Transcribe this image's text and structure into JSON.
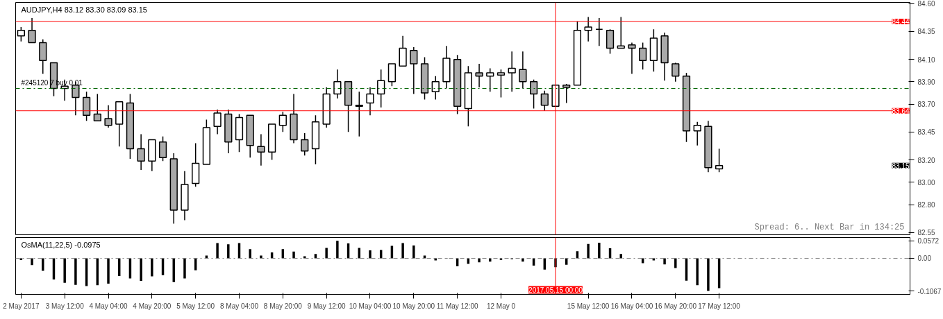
{
  "chart_data": [
    {
      "type": "candlestick",
      "title": "AUDJPY,H4 83.12 83.30 83.09 83.15",
      "categories": [
        "2 May 2017",
        null,
        null,
        null,
        "3 May 12:00",
        null,
        null,
        null,
        "4 May 04:00",
        null,
        null,
        null,
        "4 May 20:00",
        null,
        null,
        null,
        "5 May 12:00",
        null,
        null,
        null,
        "8 May 04:00",
        null,
        null,
        null,
        "8 May 20:00",
        null,
        null,
        null,
        "9 May 12:00",
        null,
        null,
        null,
        "10 May 04:00",
        null,
        null,
        null,
        "10 May 20:00",
        null,
        null,
        null,
        "11 May 12:00",
        null,
        null,
        null,
        "12 May 0",
        null,
        null,
        null,
        null,
        "2017.05.15 00:00",
        null,
        null,
        "15 May 12:00",
        null,
        null,
        null,
        "16 May 04:00",
        null,
        null,
        null,
        "16 May 20:00",
        null,
        null,
        null,
        "17 May 12:00",
        null,
        null,
        null,
        null,
        null,
        null,
        null,
        null,
        null,
        null,
        null,
        null,
        null,
        null,
        null,
        null,
        null
      ],
      "ohlc": [
        [
          84.31,
          84.39,
          84.26,
          84.36
        ],
        [
          84.36,
          84.47,
          84.25,
          84.25
        ],
        [
          84.25,
          84.28,
          83.97,
          84.09
        ],
        [
          84.07,
          84.07,
          83.77,
          83.84
        ],
        [
          83.84,
          83.92,
          83.73,
          83.86
        ],
        [
          83.87,
          83.9,
          83.6,
          83.76
        ],
        [
          83.76,
          83.81,
          83.55,
          83.6
        ],
        [
          83.61,
          83.79,
          83.55,
          83.55
        ],
        [
          83.57,
          83.69,
          83.49,
          83.51
        ],
        [
          83.52,
          83.72,
          83.32,
          83.72
        ],
        [
          83.71,
          83.79,
          83.21,
          83.3
        ],
        [
          83.3,
          83.43,
          83.11,
          83.19
        ],
        [
          83.19,
          83.38,
          83.1,
          83.38
        ],
        [
          83.36,
          83.41,
          83.19,
          83.22
        ],
        [
          83.21,
          83.26,
          82.63,
          82.75
        ],
        [
          82.75,
          83.1,
          82.66,
          82.98
        ],
        [
          82.99,
          83.35,
          82.96,
          83.17
        ],
        [
          83.16,
          83.56,
          83.16,
          83.49
        ],
        [
          83.5,
          83.65,
          83.43,
          83.62
        ],
        [
          83.61,
          83.65,
          83.26,
          83.36
        ],
        [
          83.38,
          83.61,
          83.27,
          83.58
        ],
        [
          83.6,
          83.6,
          83.22,
          83.33
        ],
        [
          83.32,
          83.43,
          83.15,
          83.27
        ],
        [
          83.27,
          83.52,
          83.2,
          83.52
        ],
        [
          83.51,
          83.63,
          83.45,
          83.6
        ],
        [
          83.61,
          83.79,
          83.35,
          83.38
        ],
        [
          83.38,
          83.44,
          83.24,
          83.28
        ],
        [
          83.3,
          83.6,
          83.16,
          83.54
        ],
        [
          83.52,
          83.85,
          83.49,
          83.79
        ],
        [
          83.79,
          84.01,
          83.75,
          83.9
        ],
        [
          83.9,
          83.9,
          83.45,
          83.69
        ],
        [
          83.68,
          83.81,
          83.41,
          83.69
        ],
        [
          83.71,
          83.85,
          83.6,
          83.79
        ],
        [
          83.79,
          84.01,
          83.67,
          83.91
        ],
        [
          83.9,
          84.06,
          83.86,
          84.06
        ],
        [
          84.04,
          84.31,
          84.04,
          84.2
        ],
        [
          84.18,
          84.21,
          83.79,
          84.06
        ],
        [
          84.06,
          84.12,
          83.74,
          83.8
        ],
        [
          83.81,
          83.95,
          83.74,
          83.9
        ],
        [
          83.9,
          84.22,
          83.84,
          84.11
        ],
        [
          84.1,
          84.14,
          83.61,
          83.68
        ],
        [
          83.66,
          84.04,
          83.5,
          83.98
        ],
        [
          83.98,
          84.06,
          83.85,
          83.95
        ],
        [
          83.95,
          84.02,
          83.81,
          83.98
        ],
        [
          83.96,
          84.01,
          83.76,
          83.98
        ],
        [
          83.98,
          84.17,
          83.81,
          84.02
        ],
        [
          84.01,
          84.17,
          83.84,
          83.9
        ],
        [
          83.9,
          83.92,
          83.66,
          83.79
        ],
        [
          83.79,
          83.82,
          83.64,
          83.69
        ],
        [
          83.68,
          83.87,
          83.68,
          83.87
        ],
        [
          83.87,
          83.88,
          83.71,
          83.85
        ],
        [
          83.87,
          84.44,
          83.87,
          84.36
        ],
        [
          84.36,
          84.48,
          84.26,
          84.39
        ],
        [
          84.37,
          84.47,
          84.22,
          84.37
        ],
        [
          84.36,
          84.37,
          84.15,
          84.2
        ],
        [
          84.2,
          84.48,
          84.2,
          84.22
        ],
        [
          84.23,
          84.25,
          83.97,
          84.2
        ],
        [
          84.2,
          84.25,
          84.01,
          84.09
        ],
        [
          84.09,
          84.37,
          83.99,
          84.29
        ],
        [
          84.31,
          84.34,
          83.91,
          84.07
        ],
        [
          84.06,
          84.07,
          83.9,
          83.95
        ],
        [
          83.95,
          83.98,
          83.36,
          83.46
        ],
        [
          83.46,
          83.54,
          83.33,
          83.51
        ],
        [
          83.5,
          83.55,
          83.09,
          83.13
        ],
        [
          83.12,
          83.3,
          83.09,
          83.15
        ],
        null,
        null,
        null,
        null,
        null,
        null,
        null,
        null,
        null,
        null,
        null,
        null,
        null,
        null,
        null,
        null,
        null
      ],
      "ylim": [
        82.53,
        84.61
      ],
      "yticks": [
        {
          "value": 84.6,
          "label": "84.60"
        },
        {
          "value": 84.35,
          "label": "84.35"
        },
        {
          "value": 84.1,
          "label": "84.10"
        },
        {
          "value": 83.9,
          "label": "83.90"
        },
        {
          "value": 83.7,
          "label": "83.70"
        },
        {
          "value": 83.45,
          "label": "83.45"
        },
        {
          "value": 83.2,
          "label": "83.20"
        },
        {
          "value": 83.0,
          "label": "83.00"
        },
        {
          "value": 82.8,
          "label": "82.80"
        },
        {
          "value": 82.55,
          "label": "82.55"
        }
      ],
      "ref_lines": [
        {
          "axis": "y",
          "value": 84.44,
          "label": "84.44",
          "color": "#ff0000"
        },
        {
          "axis": "y",
          "value": 83.64,
          "label": "83.64",
          "color": "#ff0000"
        },
        {
          "axis": "y",
          "value": 83.84,
          "label": "#245120 7 buy 0.01",
          "color": "#006400",
          "line_style": "dashed"
        },
        {
          "axis": "x",
          "value": "2017.05.15 00:00",
          "color": "#ff0000"
        }
      ],
      "annotations": [
        "Spread: 6.. Next Bar in 134:25",
        {
          "text": "83.15",
          "y": 83.15
        }
      ],
      "tick_labels": "y"
    },
    {
      "type": "bar",
      "title": "OsMA(11,22,5) -0.0975",
      "categories": [
        "2 May 2017",
        null,
        null,
        null,
        "3 May 12:00",
        null,
        null,
        null,
        "4 May 04:00",
        null,
        null,
        null,
        "4 May 20:00",
        null,
        null,
        null,
        "5 May 12:00",
        null,
        null,
        null,
        "8 May 04:00",
        null,
        null,
        null,
        "8 May 20:00",
        null,
        null,
        null,
        "9 May 12:00",
        null,
        null,
        null,
        "10 May 04:00",
        null,
        null,
        null,
        "10 May 20:00",
        null,
        null,
        null,
        "11 May 12:00",
        null,
        null,
        null,
        "12 May 0",
        null,
        null,
        null,
        null,
        "2017.05.15 00:00",
        null,
        null,
        "15 May 12:00",
        null,
        null,
        null,
        "16 May 04:00",
        null,
        null,
        null,
        "16 May 20:00",
        null,
        null,
        null,
        "17 May 12:00",
        null,
        null,
        null,
        null,
        null,
        null,
        null,
        null,
        null,
        null,
        null,
        null,
        null,
        null,
        null,
        null,
        null
      ],
      "values": [
        -0.006,
        -0.022,
        -0.041,
        -0.069,
        -0.08,
        -0.087,
        -0.091,
        -0.088,
        -0.083,
        -0.058,
        -0.066,
        -0.074,
        -0.059,
        -0.055,
        -0.078,
        -0.066,
        -0.039,
        0.009,
        0.05,
        0.046,
        0.05,
        0.03,
        0.009,
        0.019,
        0.03,
        0.022,
        0.007,
        0.014,
        0.034,
        0.0572,
        0.049,
        0.034,
        0.026,
        0.027,
        0.041,
        0.05,
        0.042,
        0.009,
        -0.007,
        -0.001,
        -0.026,
        -0.018,
        -0.013,
        -0.011,
        -0.005,
        -0.003,
        -0.011,
        -0.024,
        -0.037,
        -0.029,
        -0.021,
        0.023,
        0.047,
        0.051,
        0.033,
        0.014,
        0.0,
        -0.016,
        -0.007,
        -0.02,
        -0.032,
        -0.073,
        -0.088,
        -0.1067,
        -0.0975,
        null,
        null,
        null,
        null,
        null,
        null,
        null,
        null,
        null,
        null,
        null,
        null,
        null,
        null,
        null,
        null,
        null
      ],
      "color": "#000000",
      "ylim": [
        -0.118,
        0.068
      ],
      "yticks": [
        {
          "value": 0.0572,
          "label": "0.0572"
        },
        {
          "value": 0,
          "label": "0.00"
        },
        {
          "value": -0.1067,
          "label": "-0.1067"
        }
      ],
      "ref_lines": [
        {
          "axis": "y",
          "value": 0,
          "color": "#808080",
          "line_style": "dashed"
        },
        {
          "axis": "x",
          "value": "2017.05.15 00:00",
          "color": "#ff0000"
        }
      ]
    }
  ]
}
